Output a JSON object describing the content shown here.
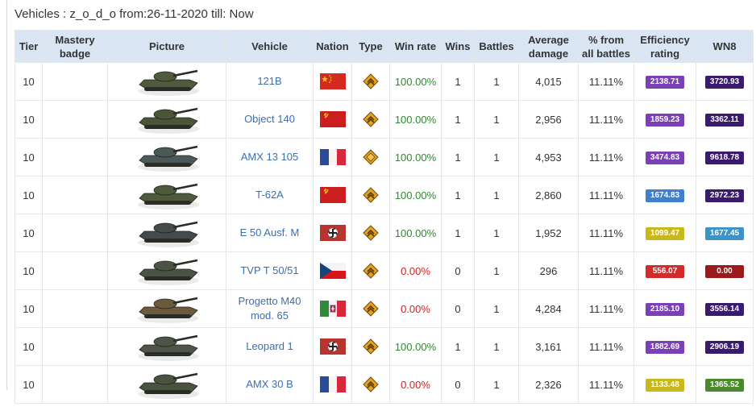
{
  "page": {
    "heading": "Vehicles : z_o_d_o from:26-11-2020 till: Now"
  },
  "table": {
    "headers": {
      "tier": "Tier",
      "mastery": "Mastery badge",
      "picture": "Picture",
      "vehicle": "Vehicle",
      "nation": "Nation",
      "type": "Type",
      "winrate": "Win rate",
      "wins": "Wins",
      "battles": "Battles",
      "avgdmg": "Average damage",
      "pct": "% from all battles",
      "eff": "Efficiency rating",
      "wn8": "WN8"
    },
    "rows": [
      {
        "tier": "10",
        "vehicle": "121B",
        "nation": "china",
        "type": "medium-tank-icon",
        "winrate": "100.00%",
        "win_color": "green",
        "wins": "1",
        "battles": "1",
        "avgdmg": "4,015",
        "pct": "11.11%",
        "eff": "2138.71",
        "eff_color": "#7b40b8",
        "wn8": "3720.93",
        "wn8_color": "#3a1a6e",
        "tank_color": "#4f5b3c"
      },
      {
        "tier": "10",
        "vehicle": "Object 140",
        "nation": "ussr",
        "type": "medium-tank-icon",
        "winrate": "100.00%",
        "win_color": "green",
        "wins": "1",
        "battles": "1",
        "avgdmg": "2,956",
        "pct": "11.11%",
        "eff": "1859.23",
        "eff_color": "#7b40b8",
        "wn8": "3362.11",
        "wn8_color": "#3a1a6e",
        "tank_color": "#4a553a"
      },
      {
        "tier": "10",
        "vehicle": "AMX 13 105",
        "nation": "france",
        "type": "light-tank-icon",
        "winrate": "100.00%",
        "win_color": "green",
        "wins": "1",
        "battles": "1",
        "avgdmg": "4,953",
        "pct": "11.11%",
        "eff": "3474.83",
        "eff_color": "#7b40b8",
        "wn8": "9618.78",
        "wn8_color": "#3a1a6e",
        "tank_color": "#4b5a58"
      },
      {
        "tier": "10",
        "vehicle": "T-62A",
        "nation": "ussr",
        "type": "medium-tank-icon",
        "winrate": "100.00%",
        "win_color": "green",
        "wins": "1",
        "battles": "1",
        "avgdmg": "2,860",
        "pct": "11.11%",
        "eff": "1674.83",
        "eff_color": "#3d7fd0",
        "wn8": "2972.23",
        "wn8_color": "#3a1a6e",
        "tank_color": "#4d5a3b"
      },
      {
        "tier": "10",
        "vehicle": "E 50 Ausf. M",
        "nation": "germany",
        "type": "medium-tank-icon",
        "winrate": "100.00%",
        "win_color": "green",
        "wins": "1",
        "battles": "1",
        "avgdmg": "1,952",
        "pct": "11.11%",
        "eff": "1099.47",
        "eff_color": "#c9b81a",
        "wn8": "1677.45",
        "wn8_color": "#3d92c8",
        "tank_color": "#454a4c"
      },
      {
        "tier": "10",
        "vehicle": "TVP T 50/51",
        "nation": "czech",
        "type": "medium-tank-icon",
        "winrate": "0.00%",
        "win_color": "red",
        "wins": "0",
        "battles": "1",
        "avgdmg": "296",
        "pct": "11.11%",
        "eff": "556.07",
        "eff_color": "#d42a2a",
        "wn8": "0.00",
        "wn8_color": "#9b1a1a",
        "tank_color": "#4b5444"
      },
      {
        "tier": "10",
        "vehicle": "Progetto M40 mod. 65",
        "nation": "italy",
        "type": "medium-tank-icon",
        "winrate": "0.00%",
        "win_color": "red",
        "wins": "0",
        "battles": "1",
        "avgdmg": "4,284",
        "pct": "11.11%",
        "eff": "2185.10",
        "eff_color": "#7b40b8",
        "wn8": "3556.14",
        "wn8_color": "#3a1a6e",
        "tank_color": "#6b5a3c"
      },
      {
        "tier": "10",
        "vehicle": "Leopard 1",
        "nation": "germany",
        "type": "medium-tank-icon",
        "winrate": "100.00%",
        "win_color": "green",
        "wins": "1",
        "battles": "1",
        "avgdmg": "3,161",
        "pct": "11.11%",
        "eff": "1882.69",
        "eff_color": "#7b40b8",
        "wn8": "2906.19",
        "wn8_color": "#3a1a6e",
        "tank_color": "#4e5448"
      },
      {
        "tier": "10",
        "vehicle": "AMX 30 B",
        "nation": "france",
        "type": "medium-tank-icon",
        "winrate": "0.00%",
        "win_color": "red",
        "wins": "0",
        "battles": "1",
        "avgdmg": "2,326",
        "pct": "11.11%",
        "eff": "1133.48",
        "eff_color": "#c9b81a",
        "wn8": "1365.52",
        "wn8_color": "#4a8a2c",
        "tank_color": "#4a5240"
      }
    ]
  }
}
